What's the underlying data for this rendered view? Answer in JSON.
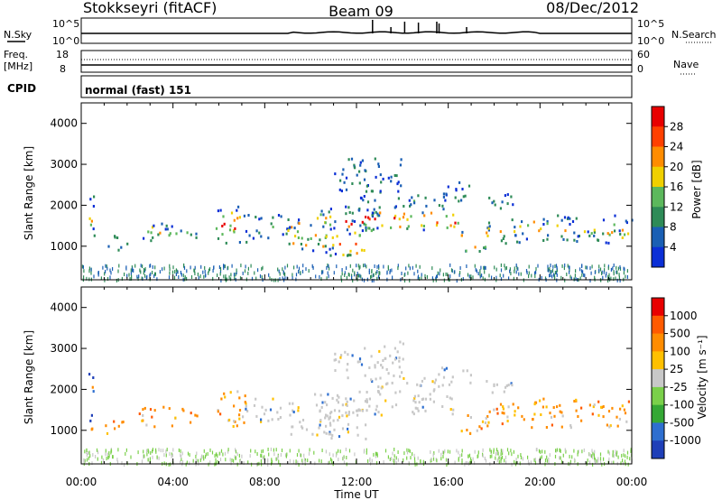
{
  "header": {
    "station": "Stokkseyri (fitACF)",
    "beam": "Beam 09",
    "date": "08/Dec/2012"
  },
  "strip_panels": {
    "nsky_label": "N.Sky",
    "nsky_ticks": [
      "10^5",
      "10^0"
    ],
    "nsearch_label": "N.Search",
    "nsearch_ticks": [
      "10^5",
      "10^0"
    ],
    "freq_label_line1": "Freq.",
    "freq_label_line2": "[MHz]",
    "freq_ticks": [
      "18",
      "8"
    ],
    "nave_label": "Nave",
    "nave_ticks": [
      "60",
      "0"
    ],
    "cpid_label": "CPID",
    "cpid_value": "normal (fast) 151"
  },
  "chart_data": [
    {
      "type": "heatmap",
      "name": "power",
      "ylabel": "Slant Range [km]",
      "xlabel": "",
      "yticks": [
        "1000",
        "2000",
        "3000",
        "4000"
      ],
      "ylim": [
        180,
        4500
      ],
      "x_range_hours": [
        0,
        24
      ],
      "colorbar_label": "Power [dB]",
      "colorbar_ticks": [
        "4",
        "8",
        "12",
        "16",
        "20",
        "24",
        "28"
      ],
      "colorbar_colors": [
        "#0b2fd6",
        "#1a5fb4",
        "#2e8b57",
        "#5cb85c",
        "#f0d000",
        "#ff8c00",
        "#ff4000",
        "#e80000"
      ]
    },
    {
      "type": "heatmap",
      "name": "velocity",
      "ylabel": "Slant Range [km]",
      "xlabel": "Time UT",
      "yticks": [
        "1000",
        "2000",
        "3000",
        "4000"
      ],
      "ylim": [
        180,
        4500
      ],
      "x_range_hours": [
        0,
        24
      ],
      "xticks": [
        "00:00",
        "04:00",
        "08:00",
        "12:00",
        "16:00",
        "20:00",
        "00:00"
      ],
      "colorbar_label": "Velocity [m s⁻¹]",
      "colorbar_ticks": [
        "1000",
        "500",
        "100",
        "25",
        "-25",
        "-100",
        "-500",
        "-1000"
      ],
      "colorbar_colors": [
        "#1f3fb8",
        "#2e6fd0",
        "#35a835",
        "#7ad04a",
        "#c8c8c8",
        "#ffc000",
        "#ff8c00",
        "#ff5a00",
        "#e80000"
      ]
    }
  ]
}
